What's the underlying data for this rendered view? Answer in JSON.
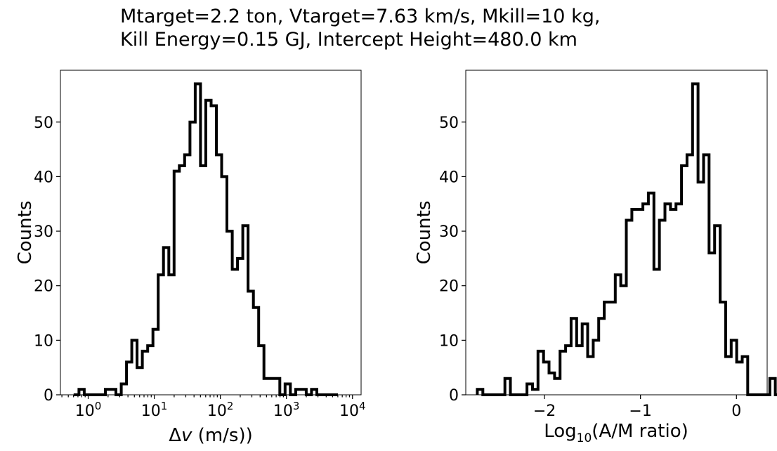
{
  "figure": {
    "title_lines": [
      "Mtarget=2.2 ton, Vtarget=7.63 km/s, Mkill=10 kg,",
      "Kill Energy=0.15 GJ, Intercept Height=480.0 km"
    ]
  },
  "chart_data": [
    {
      "type": "histogram",
      "xscale": "log",
      "xlabel": "Δv (m/s))",
      "ylabel": "Counts",
      "xlim": [
        0.38,
        13500
      ],
      "ylim": [
        0,
        59.5
      ],
      "xticks": [
        {
          "value": 1,
          "label": "10^0"
        },
        {
          "value": 10,
          "label": "10^1"
        },
        {
          "value": 100,
          "label": "10^2"
        },
        {
          "value": 1000,
          "label": "10^3"
        },
        {
          "value": 10000,
          "label": "10^4"
        }
      ],
      "yticks": [
        0,
        10,
        20,
        30,
        40,
        50
      ],
      "bin_log10_start": -0.22,
      "bin_log10_width": 0.08,
      "counts": [
        0,
        1,
        0,
        0,
        0,
        0,
        1,
        1,
        0,
        2,
        6,
        10,
        5,
        8,
        9,
        12,
        22,
        27,
        22,
        41,
        42,
        44,
        50,
        57,
        42,
        54,
        53,
        44,
        40,
        30,
        23,
        25,
        31,
        19,
        16,
        9,
        3,
        3,
        3,
        0,
        2,
        0,
        1,
        1,
        0,
        1,
        0,
        0,
        0,
        0
      ]
    },
    {
      "type": "histogram",
      "xscale": "linear",
      "xlabel": "Log10(A/M ratio)",
      "ylabel": "Counts",
      "xlim": [
        -2.82,
        0.32
      ],
      "ylim": [
        0,
        59.5
      ],
      "xticks": [
        {
          "value": -2,
          "label": "−2"
        },
        {
          "value": -1,
          "label": "−1"
        },
        {
          "value": 0,
          "label": "0"
        }
      ],
      "yticks": [
        0,
        10,
        20,
        30,
        40,
        50
      ],
      "bin_start": -2.7,
      "bin_width": 0.0575,
      "counts": [
        1,
        0,
        0,
        0,
        0,
        3,
        0,
        0,
        0,
        2,
        1,
        8,
        6,
        4,
        3,
        8,
        9,
        14,
        9,
        13,
        7,
        10,
        14,
        17,
        17,
        22,
        20,
        32,
        34,
        34,
        35,
        37,
        23,
        32,
        35,
        34,
        35,
        42,
        44,
        57,
        39,
        44,
        26,
        31,
        17,
        7,
        10,
        6,
        7,
        0,
        0,
        0,
        0,
        3,
        0,
        2
      ]
    }
  ]
}
